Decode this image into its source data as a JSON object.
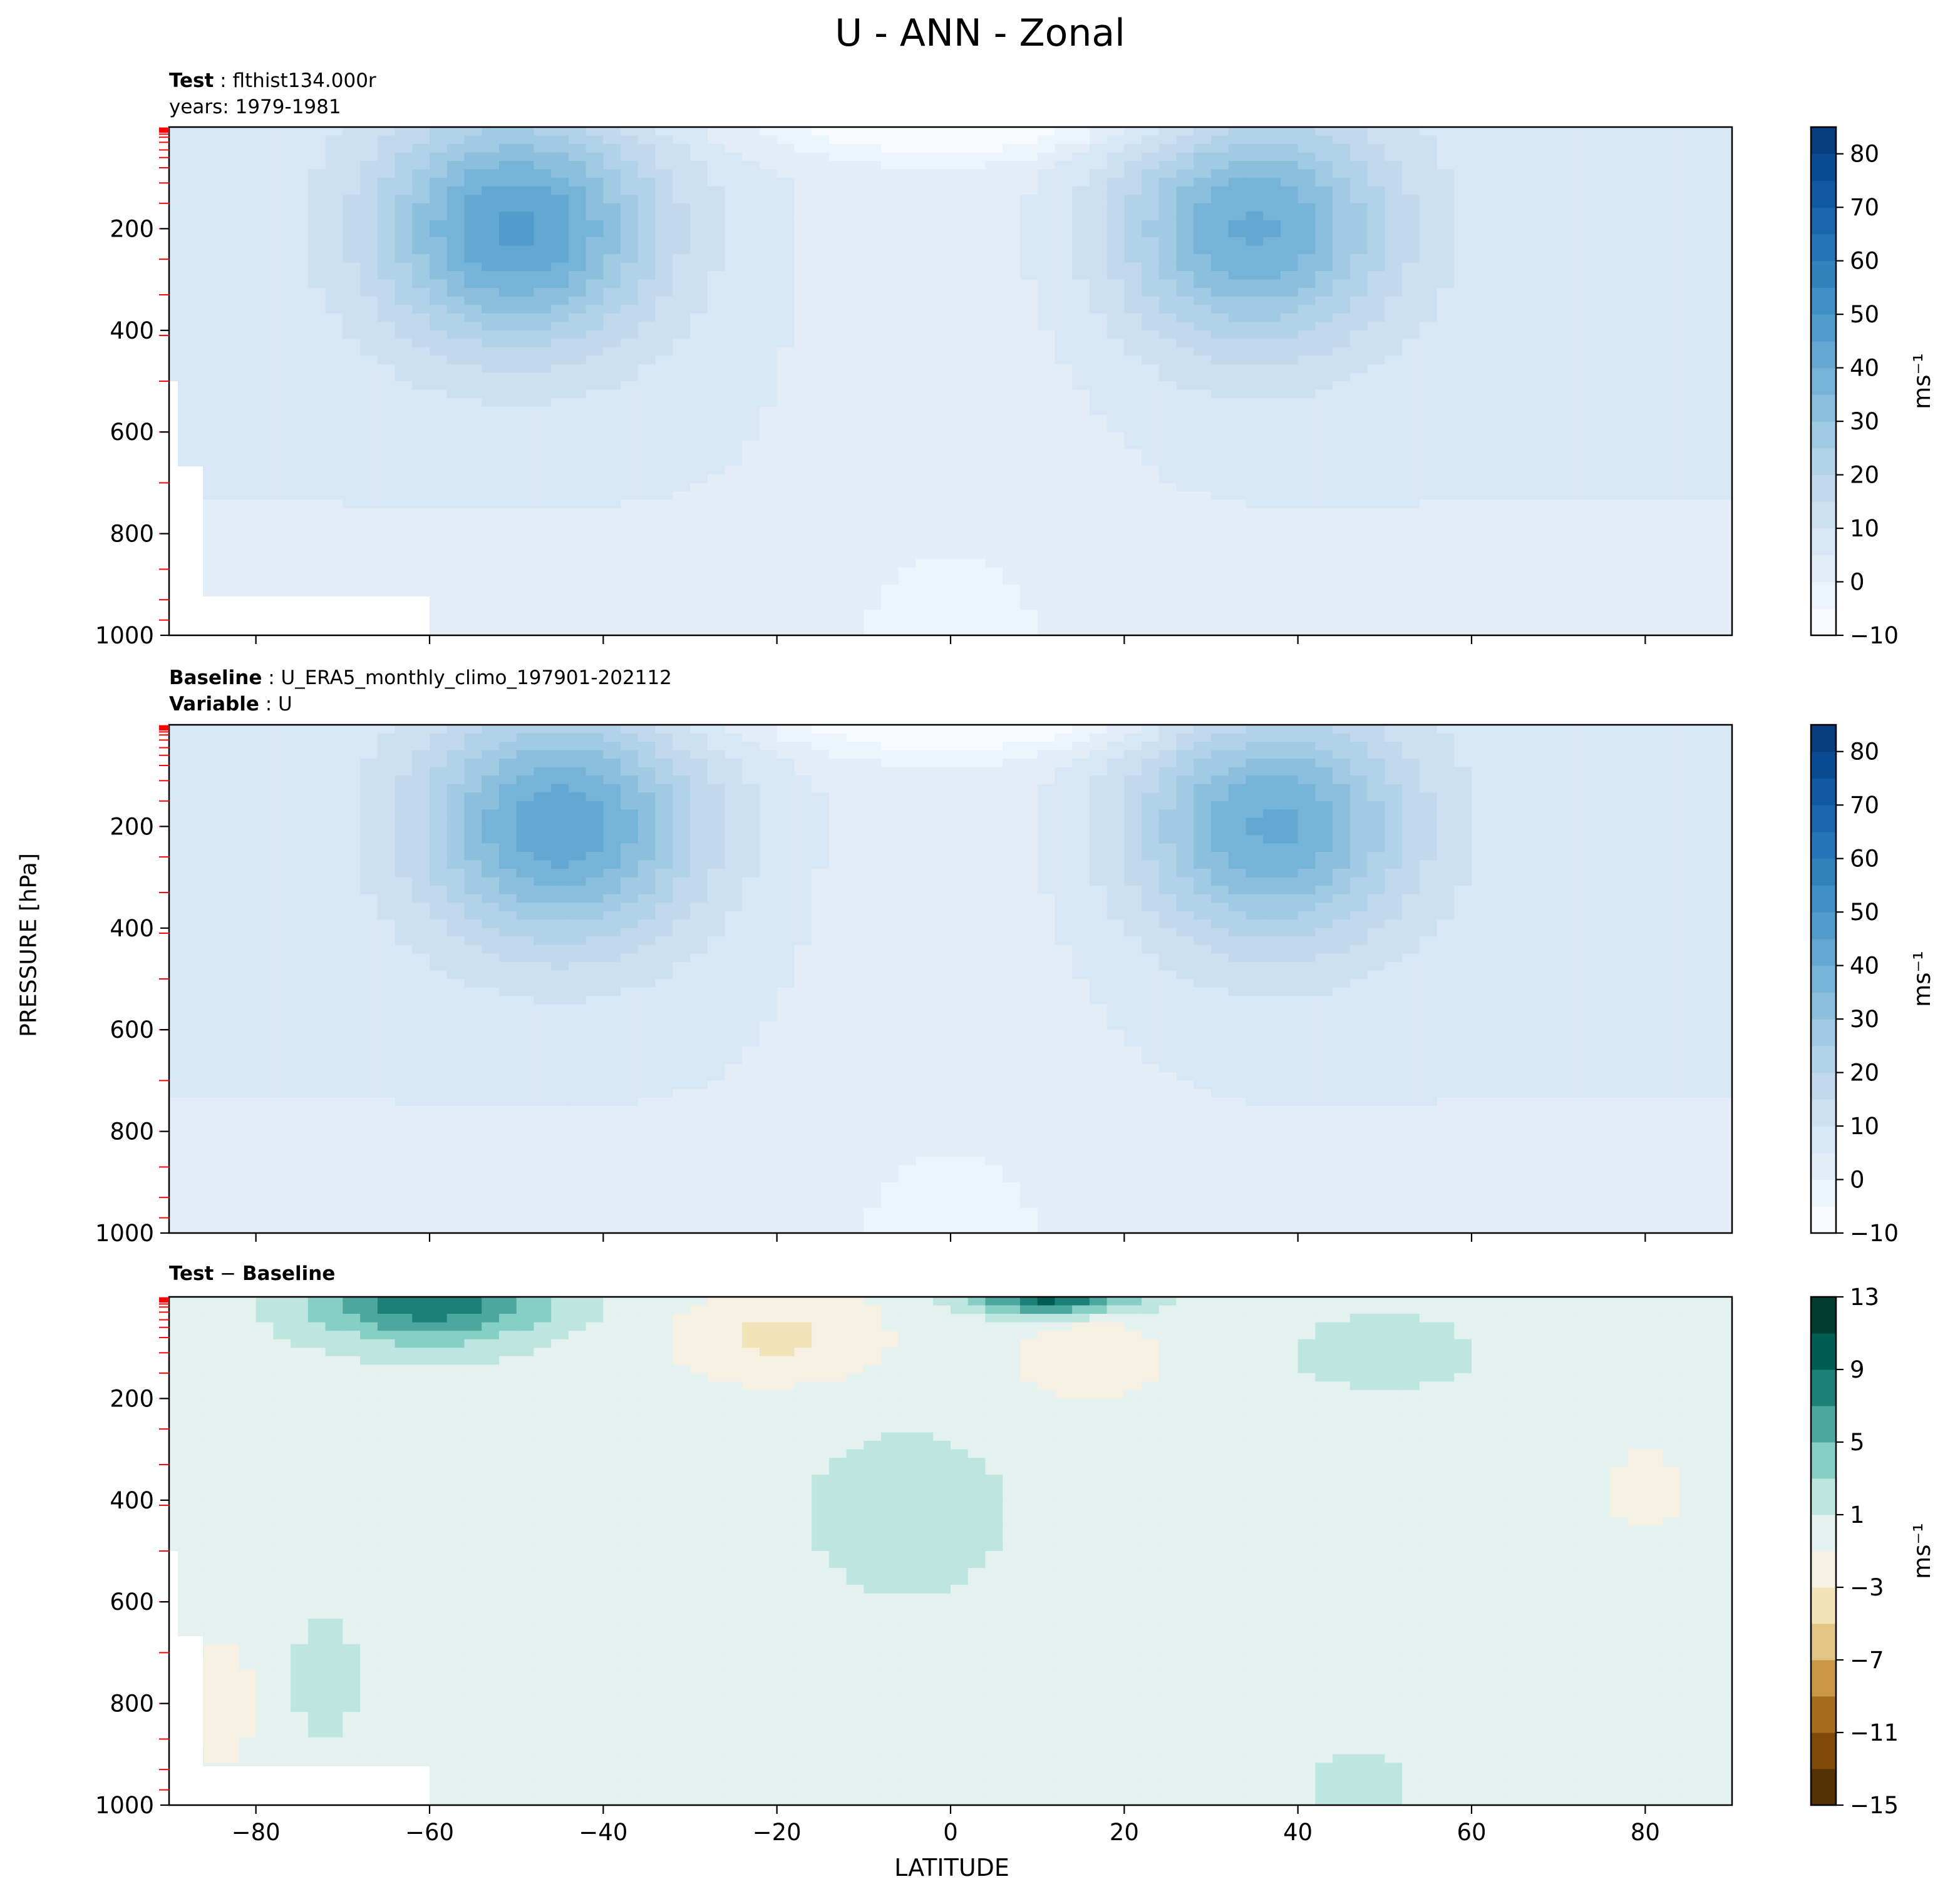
{
  "figure": {
    "title": "U - ANN - Zonal",
    "ylabel": "PRESSURE [hPa]",
    "xlabel": "LATITUDE"
  },
  "panels": [
    {
      "title_bold": "Test",
      "title_text": "flthist134.000r",
      "subtitle": "years: 1979-1981"
    },
    {
      "title_bold": "Baseline",
      "title_text": "U_ERA5_monthly_climo_197901-202112",
      "subtitle_bold": "Variable",
      "subtitle_text": "U"
    },
    {
      "title_bold": "Test",
      "title_sep": " − ",
      "title_bold2": "Baseline"
    }
  ],
  "chart_data": [
    {
      "type": "heatmap",
      "title": "Test : flthist134.000r",
      "subtitle": "years: 1979-1981",
      "xlim": [
        -90,
        90
      ],
      "ylim": [
        1000,
        0
      ],
      "yticks": [
        200,
        400,
        600,
        800,
        1000
      ],
      "colorbar": {
        "label": "ms⁻¹",
        "ticks": [
          -10,
          0,
          10,
          20,
          30,
          40,
          50,
          60,
          70,
          80
        ],
        "levels": [
          -10,
          -5,
          0,
          5,
          10,
          15,
          20,
          25,
          30,
          35,
          40,
          45,
          50,
          55,
          60,
          65,
          70,
          75,
          80,
          85
        ],
        "colormap": "Blues"
      },
      "jets": [
        {
          "lat": -50,
          "p": 200,
          "max_speed": 40
        },
        {
          "lat": 35,
          "p": 200,
          "max_speed": 35
        }
      ]
    },
    {
      "type": "heatmap",
      "title": "Baseline : U_ERA5_monthly_climo_197901-202112",
      "subtitle": "Variable : U",
      "xlim": [
        -90,
        90
      ],
      "ylim": [
        1000,
        0
      ],
      "yticks": [
        200,
        400,
        600,
        800,
        1000
      ],
      "colorbar": {
        "label": "ms⁻¹",
        "ticks": [
          -10,
          0,
          10,
          20,
          30,
          40,
          50,
          60,
          70,
          80
        ],
        "levels": [
          -10,
          -5,
          0,
          5,
          10,
          15,
          20,
          25,
          30,
          35,
          40,
          45,
          50,
          55,
          60,
          65,
          70,
          75,
          80,
          85
        ],
        "colormap": "Blues"
      },
      "jets": [
        {
          "lat": -45,
          "p": 200,
          "max_speed": 38
        },
        {
          "lat": 37,
          "p": 200,
          "max_speed": 35
        }
      ]
    },
    {
      "type": "heatmap",
      "title": "Test − Baseline",
      "xlim": [
        -90,
        90
      ],
      "ylim": [
        1000,
        0
      ],
      "yticks": [
        200,
        400,
        600,
        800,
        1000
      ],
      "xticks": [
        -80,
        -60,
        -40,
        -20,
        0,
        20,
        40,
        60,
        80
      ],
      "colorbar": {
        "label": "ms⁻¹",
        "ticks": [
          -15,
          -11,
          -7,
          -3,
          1,
          5,
          9,
          13
        ],
        "levels": [
          -15,
          -13,
          -11,
          -9,
          -7,
          -5,
          -3,
          -1,
          1,
          3,
          5,
          7,
          9,
          11,
          13
        ],
        "colormap": "BrBG"
      }
    }
  ]
}
